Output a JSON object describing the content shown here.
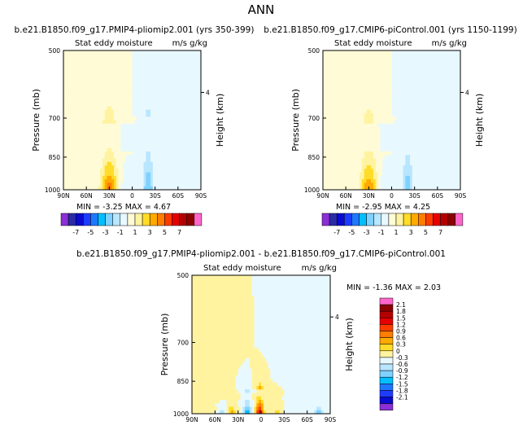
{
  "title": "ANN",
  "colorbar_levels": [
    "-7",
    "-5",
    "-3",
    "-1",
    "1",
    "3",
    "5",
    "7"
  ],
  "colorbar_colors": [
    "#8b2fd6",
    "#2b2ba6",
    "#0a0ad0",
    "#1e3cff",
    "#1e78ff",
    "#00bfff",
    "#7fd2ff",
    "#b8e6ff",
    "#e8f8ff",
    "#fffbd6",
    "#fff3a0",
    "#ffdc28",
    "#ffaa00",
    "#ff7d00",
    "#ff3c00",
    "#e60000",
    "#b40000",
    "#8b0000",
    "#ff66cc"
  ],
  "diff_colorbar_levels": [
    "2.1",
    "1.8",
    "1.5",
    "1.2",
    "0.9",
    "0.6",
    "0.3",
    "0",
    "-0.3",
    "-0.6",
    "-0.9",
    "-1.2",
    "-1.5",
    "-1.8",
    "-2.1"
  ],
  "diff_colorbar_colors": [
    "#ff66cc",
    "#8b0000",
    "#b40000",
    "#e60000",
    "#ff3c00",
    "#ff7d00",
    "#ffaa00",
    "#ffdc28",
    "#fff3a0",
    "#e8f8ff",
    "#b8e6ff",
    "#7fd2ff",
    "#00bfff",
    "#1e78ff",
    "#1e3cff",
    "#0a0ad0",
    "#8b2fd6"
  ],
  "chart_data": [
    {
      "type": "heatmap",
      "id": "panel-1",
      "title": "b.e21.B1850.f09_g17.PMIP4-pliomip2.001 (yrs 350-399)",
      "subtitle_left": "Stat eddy moisture",
      "subtitle_right": "m/s g/kg",
      "xlabel": "",
      "ylabel": "Pressure (mb)",
      "ylabel_right": "Height (km)",
      "x_ticks": [
        "90N",
        "60N",
        "30N",
        "0",
        "30S",
        "60S",
        "90S"
      ],
      "x_tick_values": [
        90,
        60,
        30,
        0,
        -30,
        -60,
        -90
      ],
      "y_ticks": [
        "500",
        "700",
        "850",
        "1000"
      ],
      "y_tick_values": [
        500,
        700,
        850,
        1000
      ],
      "ylim": [
        500,
        1000
      ],
      "right_axis_ticks": [
        "4"
      ],
      "right_axis_values": [
        616
      ],
      "min_label": "MIN = -3.25   MAX = 4.67",
      "min": -3.25,
      "max": 4.67,
      "features": [
        {
          "lat": 30,
          "p_top": 720,
          "halfwidth_lat": 11,
          "peak": 4.67
        },
        {
          "lat": -21,
          "p_top": 700,
          "halfwidth_lat": 7,
          "peak": -3.25
        },
        {
          "lat": 12,
          "p_top": 820,
          "halfwidth_lat": 6,
          "peak": -0.6
        },
        {
          "lat": 62,
          "p_top": 500,
          "halfwidth_lat": 10,
          "peak": 0.7
        },
        {
          "lat": -55,
          "p_top": 600,
          "halfwidth_lat": 8,
          "peak": -0.6
        },
        {
          "lat": -80,
          "p_top": 900,
          "halfwidth_lat": 8,
          "peak": -0.6
        }
      ]
    },
    {
      "type": "heatmap",
      "id": "panel-2",
      "title": "b.e21.B1850.f09_g17.CMIP6-piControl.001 (yrs 1150-1199)",
      "subtitle_left": "Stat eddy moisture",
      "subtitle_right": "m/s g/kg",
      "xlabel": "",
      "ylabel": "Pressure (mb)",
      "ylabel_right": "Height (km)",
      "x_ticks": [
        "90N",
        "60N",
        "30N",
        "0",
        "30S",
        "60S",
        "90S"
      ],
      "x_tick_values": [
        90,
        60,
        30,
        0,
        -30,
        -60,
        -90
      ],
      "y_ticks": [
        "500",
        "700",
        "850",
        "1000"
      ],
      "y_tick_values": [
        500,
        700,
        850,
        1000
      ],
      "ylim": [
        500,
        1000
      ],
      "right_axis_ticks": [
        "4"
      ],
      "right_axis_values": [
        616
      ],
      "min_label": "MIN = -2.95   MAX = 4.25",
      "min": -2.95,
      "max": 4.25,
      "features": [
        {
          "lat": 30,
          "p_top": 720,
          "halfwidth_lat": 11,
          "peak": 4.25
        },
        {
          "lat": -21,
          "p_top": 700,
          "halfwidth_lat": 7,
          "peak": -2.95
        },
        {
          "lat": 12,
          "p_top": 820,
          "halfwidth_lat": 6,
          "peak": -0.6
        },
        {
          "lat": 65,
          "p_top": 500,
          "halfwidth_lat": 10,
          "peak": 0.6
        },
        {
          "lat": -55,
          "p_top": 620,
          "halfwidth_lat": 8,
          "peak": -0.6
        },
        {
          "lat": -80,
          "p_top": 900,
          "halfwidth_lat": 8,
          "peak": -0.6
        }
      ]
    },
    {
      "type": "heatmap",
      "id": "panel-3",
      "title": "b.e21.B1850.f09_g17.PMIP4-pliomip2.001 - b.e21.B1850.f09_g17.CMIP6-piControl.001",
      "subtitle_left": "Stat eddy moisture",
      "subtitle_right": "m/s g/kg",
      "xlabel": "",
      "ylabel": "Pressure (mb)",
      "ylabel_right": "Height (km)",
      "x_ticks": [
        "90N",
        "60N",
        "30N",
        "0",
        "30S",
        "60S",
        "90S"
      ],
      "x_tick_values": [
        90,
        60,
        30,
        0,
        -30,
        -60,
        -90
      ],
      "y_ticks": [
        "500",
        "700",
        "850",
        "1000"
      ],
      "y_tick_values": [
        500,
        700,
        850,
        1000
      ],
      "ylim": [
        500,
        1000
      ],
      "right_axis_ticks": [
        "4"
      ],
      "right_axis_values": [
        616
      ],
      "min_label": "MIN = -1.36   MAX = 2.03",
      "min": -1.36,
      "max": 2.03,
      "features": [
        {
          "lat": 2,
          "p_top": 890,
          "halfwidth_lat": 5,
          "peak": 2.03
        },
        {
          "lat": 18,
          "p_top": 900,
          "halfwidth_lat": 5,
          "peak": -1.36
        },
        {
          "lat": 38,
          "p_top": 930,
          "halfwidth_lat": 5,
          "peak": 0.8
        },
        {
          "lat": 50,
          "p_top": 960,
          "halfwidth_lat": 6,
          "peak": -0.6
        },
        {
          "lat": -22,
          "p_top": 920,
          "halfwidth_lat": 5,
          "peak": 0.5
        },
        {
          "lat": -75,
          "p_top": 950,
          "halfwidth_lat": 5,
          "peak": -1.2
        },
        {
          "lat": -45,
          "p_top": 600,
          "halfwidth_lat": 10,
          "peak": -0.2
        },
        {
          "lat": 75,
          "p_top": 500,
          "halfwidth_lat": 12,
          "peak": 0.2
        }
      ]
    }
  ]
}
